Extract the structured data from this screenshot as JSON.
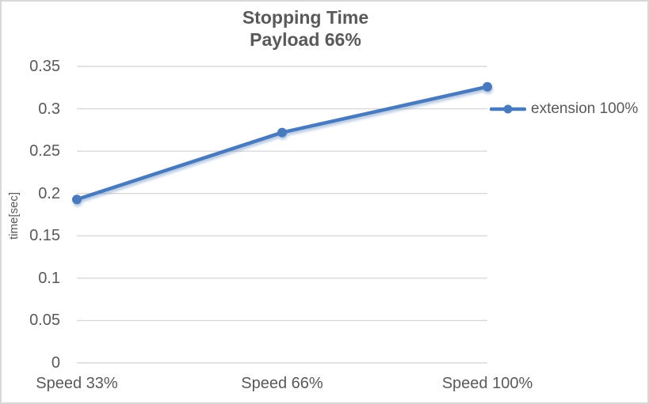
{
  "chart_data": {
    "type": "line",
    "title": "Stopping Time",
    "subtitle": "Payload 66%",
    "categories": [
      "Speed 33%",
      "Speed 66%",
      "Speed 100%"
    ],
    "series": [
      {
        "name": "extension 100%",
        "color": "#4A7ABE",
        "values": [
          0.193,
          0.272,
          0.326
        ]
      }
    ],
    "xlabel": "",
    "ylabel": "time[sec]",
    "ylim": [
      0,
      0.35
    ],
    "ytick_step": 0.05,
    "ytick_labels": [
      "0",
      "0.05",
      "0.1",
      "0.15",
      "0.2",
      "0.25",
      "0.3",
      "0.35"
    ],
    "grid": true,
    "legend_position": "right"
  },
  "colors": {
    "text": "#595959",
    "gridline": "#D9D9D9",
    "series_blue": "#4A7ABE",
    "series_glow": "rgba(74, 122, 190, 0.42)",
    "background": "#FFFFFF",
    "border": "#D8D8D8"
  }
}
